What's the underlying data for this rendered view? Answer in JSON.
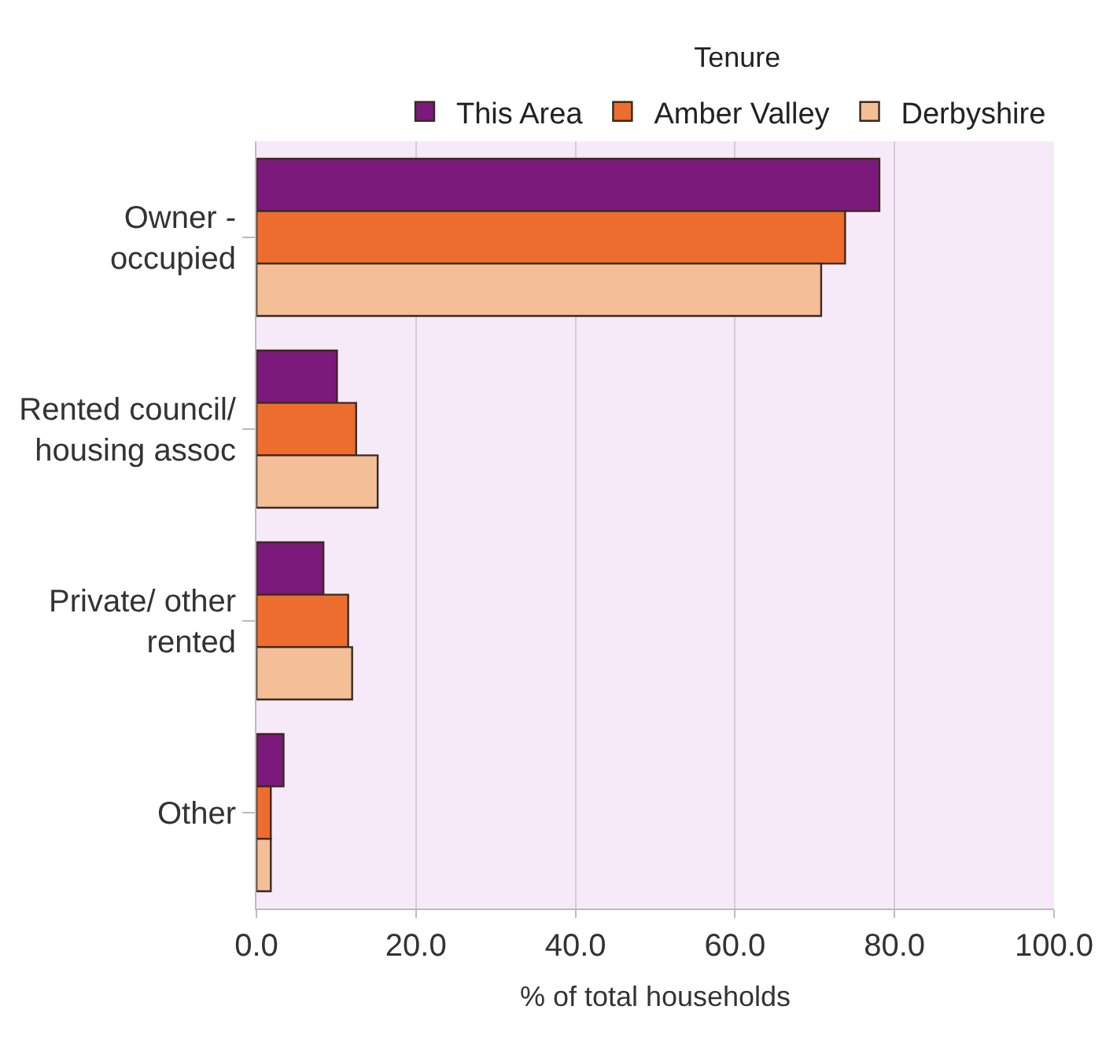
{
  "chart_data": {
    "type": "bar",
    "orientation": "horizontal",
    "title": "Tenure",
    "xlabel": "% of total households",
    "categories": [
      "Owner - occupied",
      "Rented council/ housing assoc",
      "Private/ other rented",
      "Other"
    ],
    "series": [
      {
        "name": "This Area",
        "color": "#7b1a7a",
        "values": [
          78.1,
          10.1,
          8.4,
          3.4
        ]
      },
      {
        "name": "Amber Valley",
        "color": "#ed6d2e",
        "values": [
          73.8,
          12.5,
          11.5,
          1.8
        ]
      },
      {
        "name": "Derbyshire",
        "color": "#f4bf97",
        "values": [
          70.8,
          15.2,
          12.0,
          1.8
        ]
      }
    ],
    "xlim": [
      0,
      100
    ],
    "xticks": [
      {
        "value": 0,
        "label": "0.0"
      },
      {
        "value": 20,
        "label": "20.0"
      },
      {
        "value": 40,
        "label": "40.0"
      },
      {
        "value": 60,
        "label": "60.0"
      },
      {
        "value": 80,
        "label": "80.0"
      },
      {
        "value": 100,
        "label": "100.0"
      }
    ],
    "grid": "x",
    "legend": "top"
  }
}
